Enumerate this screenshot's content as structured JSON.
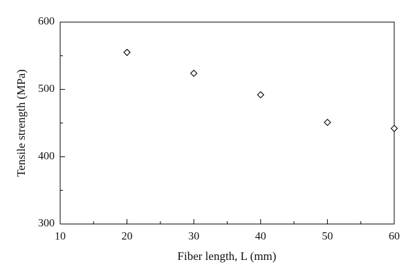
{
  "chart_data": {
    "type": "scatter",
    "x_label": "Fiber length, L (mm)",
    "y_label": "Tensile strength (MPa)",
    "series": [
      {
        "x": [
          20,
          30,
          40,
          50,
          60
        ],
        "values": [
          555,
          524,
          492,
          451,
          442
        ],
        "color": "#000000"
      }
    ],
    "xlim": [
      10,
      60
    ],
    "xticks": [
      10,
      20,
      30,
      40,
      50,
      60
    ],
    "xminorticks": [
      15,
      25,
      35,
      45,
      55
    ],
    "ylim": [
      300,
      600
    ],
    "yticks": [
      300,
      400,
      500,
      600
    ],
    "yminorticks": [
      350,
      450,
      550
    ],
    "grid": false
  }
}
